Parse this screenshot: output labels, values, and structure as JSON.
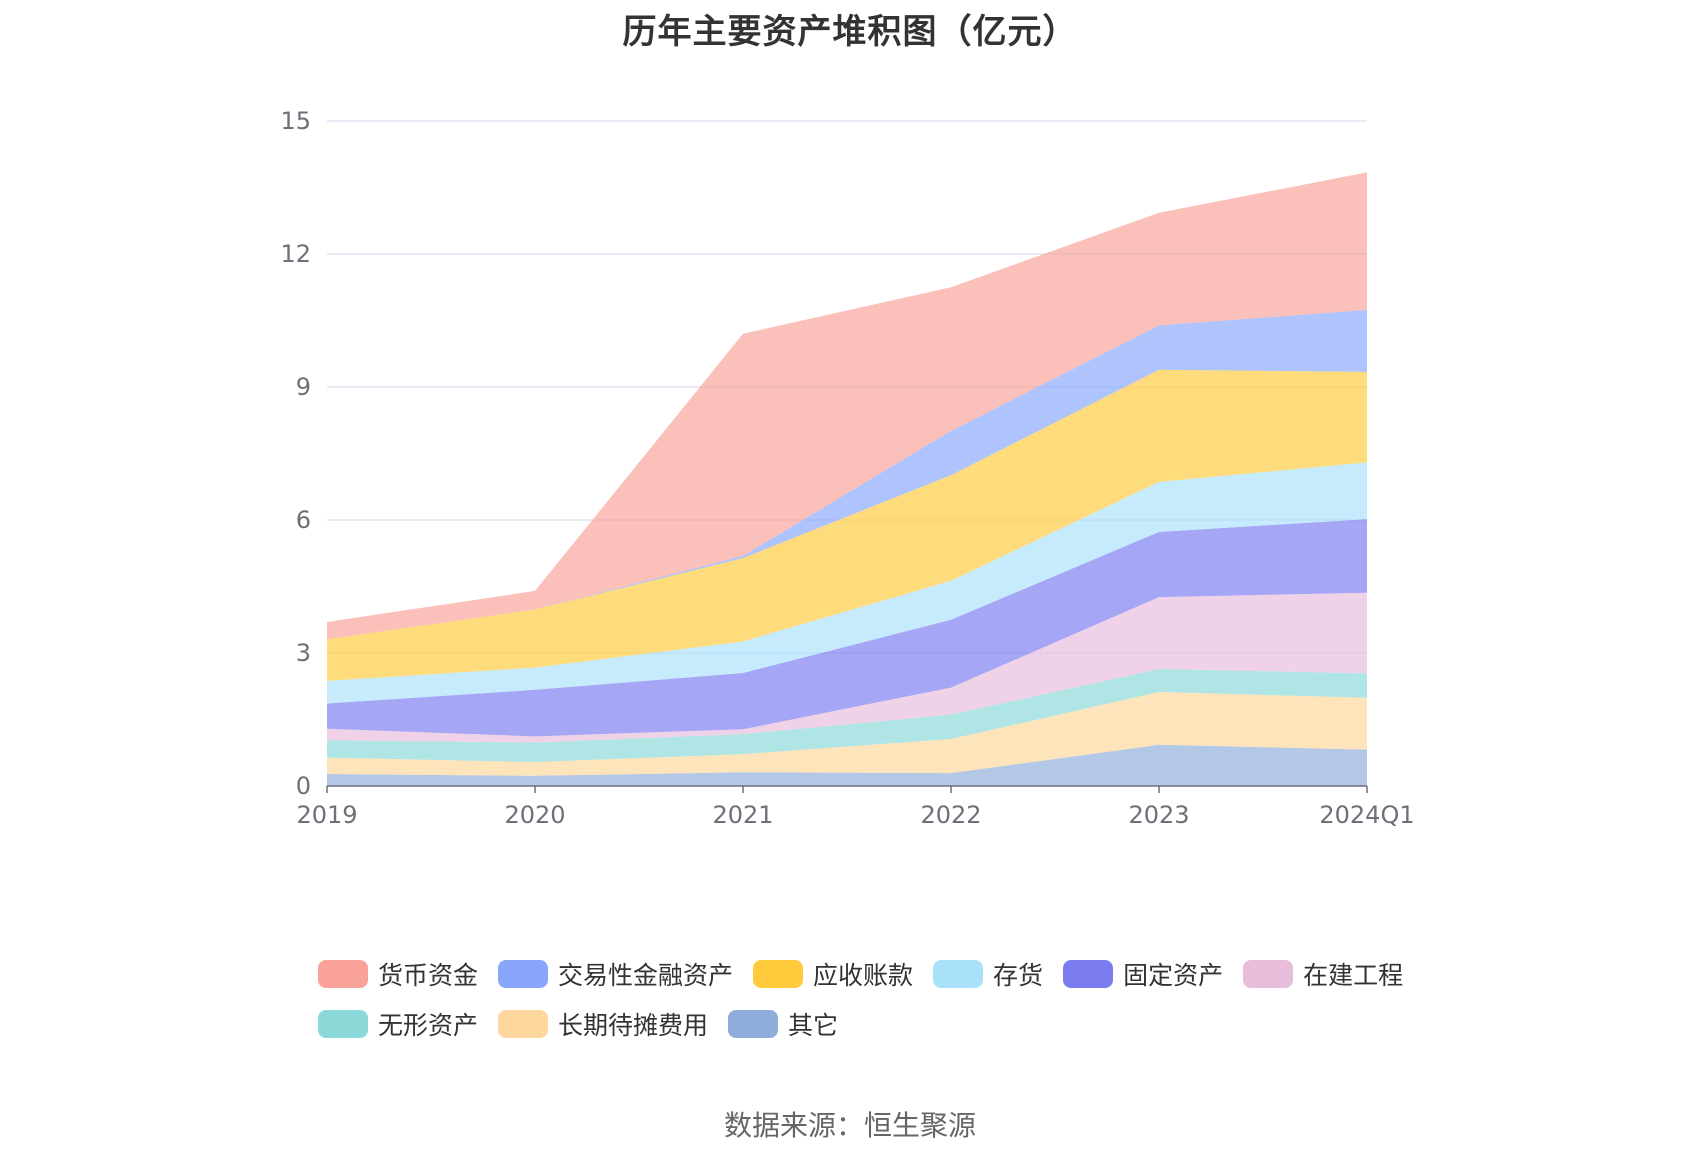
{
  "chart_data": {
    "type": "area",
    "stacked": true,
    "title": "历年主要资产堆积图（亿元）",
    "categories": [
      "2019",
      "2020",
      "2021",
      "2022",
      "2023",
      "2024Q1"
    ],
    "ylim": [
      0,
      15
    ],
    "yticks": [
      "0",
      "3",
      "6",
      "9",
      "12",
      "15"
    ],
    "xlabel": "",
    "ylabel": "",
    "grid": true,
    "legend_position": "bottom",
    "series": [
      {
        "name": "其它",
        "color": "#8fadda",
        "values": [
          0.27,
          0.23,
          0.31,
          0.29,
          0.93,
          0.82
        ]
      },
      {
        "name": "长期待摊费用",
        "color": "#fdd79b",
        "values": [
          0.37,
          0.31,
          0.41,
          0.77,
          1.19,
          1.17
        ]
      },
      {
        "name": "无形资产",
        "color": "#8bd8d8",
        "values": [
          0.39,
          0.44,
          0.45,
          0.55,
          0.52,
          0.55
        ]
      },
      {
        "name": "在建工程",
        "color": "#e8bddb",
        "values": [
          0.26,
          0.14,
          0.11,
          0.61,
          1.62,
          1.82
        ]
      },
      {
        "name": "固定资产",
        "color": "#7b7cf0",
        "values": [
          0.57,
          1.05,
          1.27,
          1.53,
          1.47,
          1.66
        ]
      },
      {
        "name": "存货",
        "color": "#a9e1fb",
        "values": [
          0.51,
          0.5,
          0.71,
          0.88,
          1.13,
          1.28
        ]
      },
      {
        "name": "应收账款",
        "color": "#ffcb3c",
        "values": [
          0.94,
          1.31,
          1.88,
          2.38,
          2.53,
          2.04
        ]
      },
      {
        "name": "交易性金融资产",
        "color": "#89a6fc",
        "values": [
          0,
          0,
          0.05,
          1.0,
          1.0,
          1.4
        ]
      },
      {
        "name": "货币资金",
        "color": "#f8a298",
        "values": [
          0.39,
          0.42,
          5.01,
          3.24,
          2.54,
          3.1
        ]
      }
    ]
  },
  "legend": {
    "items": [
      "货币资金",
      "交易性金融资产",
      "应收账款",
      "存货",
      "固定资产",
      "在建工程",
      "无形资产",
      "长期待摊费用",
      "其它"
    ]
  },
  "footer": {
    "source": "数据来源：恒生聚源"
  }
}
